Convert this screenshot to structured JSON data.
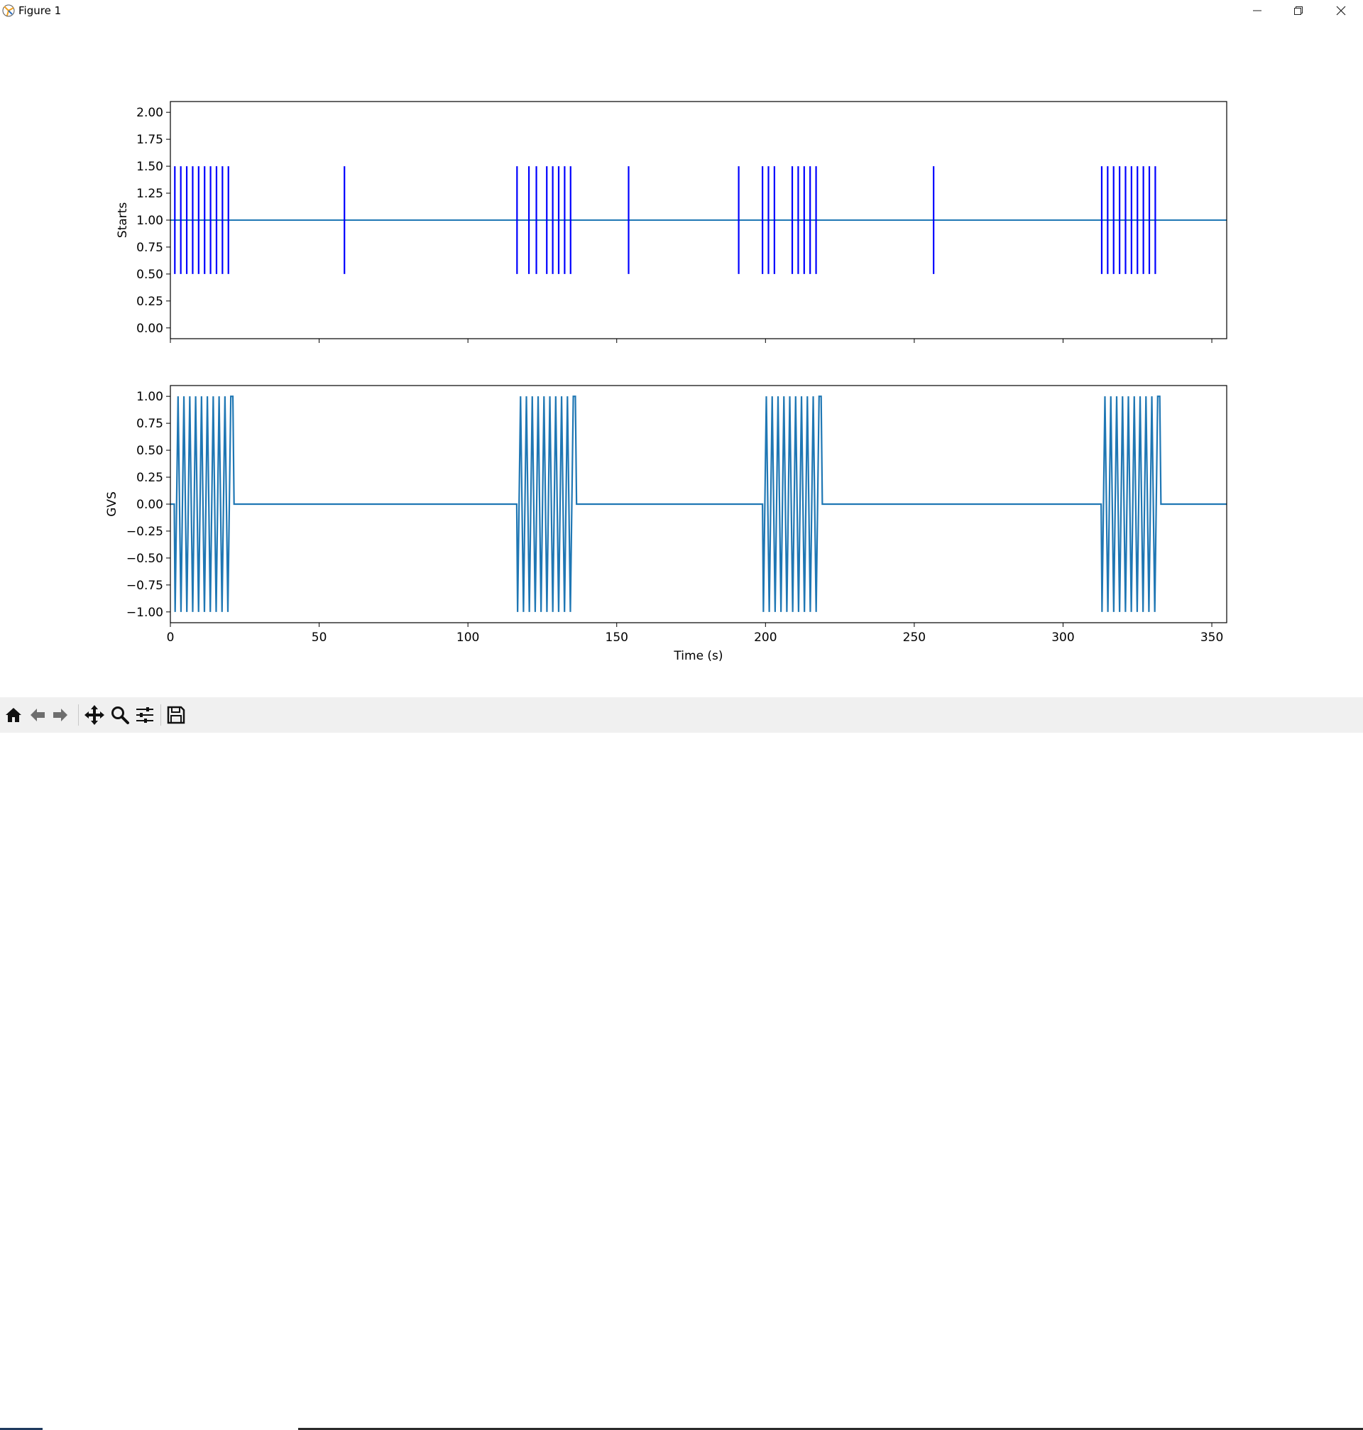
{
  "window": {
    "title": "Figure 1",
    "controls": [
      "minimize-icon",
      "restore-icon",
      "close-icon"
    ]
  },
  "toolbar": {
    "buttons": [
      "home-icon",
      "back-icon",
      "forward-icon",
      "pan-icon",
      "zoom-icon",
      "configure-subplots-icon",
      "save-icon"
    ]
  },
  "colors": {
    "starts_line": "#0000ff",
    "baseline_line": "#1f77b4",
    "gvs_line": "#1f77b4"
  },
  "chart_data": [
    {
      "type": "line",
      "ylabel": "Starts",
      "xlabel": "",
      "xlim": [
        0,
        355
      ],
      "ylim": [
        -0.1,
        2.1
      ],
      "yticks": [
        0.0,
        0.25,
        0.5,
        0.75,
        1.0,
        1.25,
        1.5,
        1.75,
        2.0
      ],
      "ytick_labels": [
        "0.00",
        "0.25",
        "0.50",
        "0.75",
        "1.00",
        "1.25",
        "1.50",
        "1.75",
        "2.00"
      ],
      "xticks": [
        0,
        50,
        100,
        150,
        200,
        250,
        300,
        350
      ],
      "xtick_labels_visible": false,
      "baseline": {
        "y": 1.0,
        "x": [
          0,
          355
        ]
      },
      "event_lines": {
        "ymin": 0.5,
        "ymax": 1.5,
        "x": [
          1.5,
          3.5,
          5.5,
          7.5,
          9.5,
          11.5,
          13.5,
          15.5,
          17.5,
          19.5,
          58.5,
          116.5,
          120.5,
          123,
          126.5,
          128.5,
          130.5,
          132.5,
          134.5,
          154,
          191,
          199,
          201,
          203,
          209,
          211,
          213,
          215,
          217,
          256.5,
          313,
          315,
          317,
          319,
          321,
          323,
          325,
          327,
          329,
          331
        ]
      }
    },
    {
      "type": "line",
      "ylabel": "GVS",
      "xlabel": "Time (s)",
      "xlim": [
        0,
        355
      ],
      "ylim": [
        -1.1,
        1.1
      ],
      "yticks": [
        -1.0,
        -0.75,
        -0.5,
        -0.25,
        0.0,
        0.25,
        0.5,
        0.75,
        1.0
      ],
      "ytick_labels": [
        "−1.00",
        "−0.75",
        "−0.50",
        "−0.25",
        "0.00",
        "0.25",
        "0.50",
        "0.75",
        "1.00"
      ],
      "xticks": [
        0,
        50,
        100,
        150,
        200,
        250,
        300,
        350
      ],
      "xtick_labels": [
        "0",
        "50",
        "100",
        "150",
        "200",
        "250",
        "300",
        "350"
      ],
      "bursts": [
        {
          "start": 1.3,
          "end": 21.0,
          "cycles": 10
        },
        {
          "start": 116.4,
          "end": 136.1,
          "cycles": 10
        },
        {
          "start": 199.0,
          "end": 218.7,
          "cycles": 10
        },
        {
          "start": 312.8,
          "end": 332.5,
          "cycles": 10
        }
      ]
    }
  ]
}
